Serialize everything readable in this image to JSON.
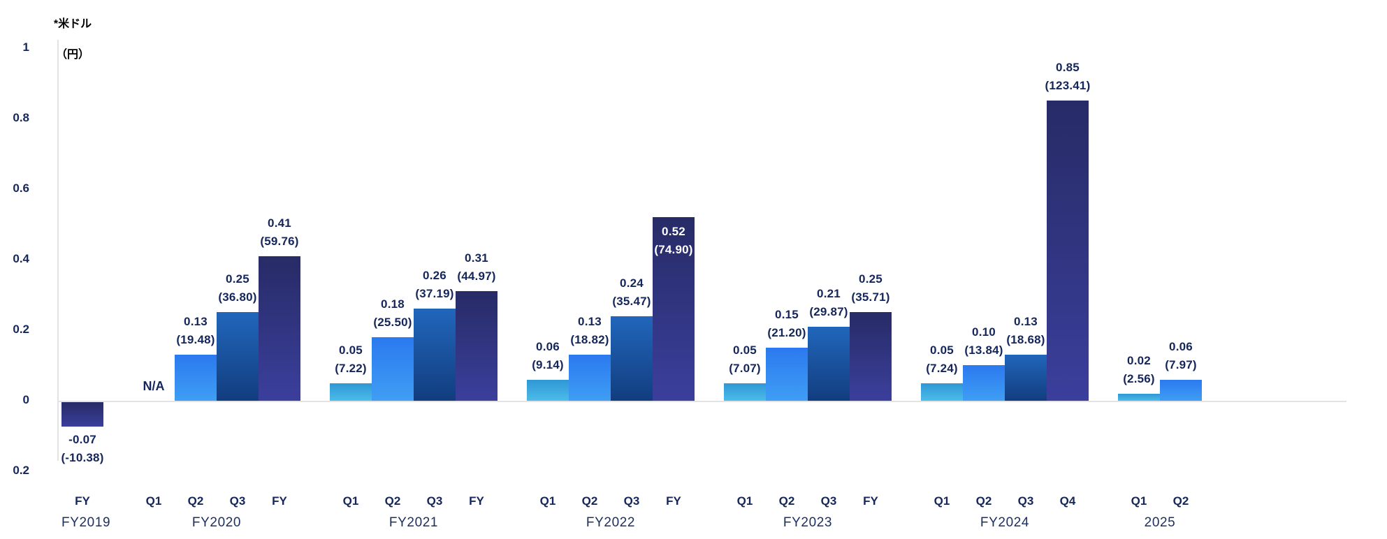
{
  "colors": {
    "text_navy": "#15265b",
    "year_text": "#1c3060",
    "grid_gray": "#e3e3e3",
    "bar_q1_top": "#2f97d5",
    "bar_q1_bottom": "#4cbce9",
    "bar_q2_top": "#2b79ef",
    "bar_q2_bottom": "#3f9ef4",
    "bar_q3_top": "#2166bb",
    "bar_q3_bottom": "#123d7f",
    "bar_fy_top": "#272b66",
    "bar_fy_bottom": "#3b3f9c",
    "inside_label": "#ffffff"
  },
  "y_axis": {
    "title_line1": "*米ドル",
    "title_line2": "（円）",
    "ticks": [
      "1",
      "0.8",
      "0.6",
      "0.4",
      "0.2",
      "0",
      "0.2"
    ],
    "tick_values": [
      1.0,
      0.8,
      0.6,
      0.4,
      0.2,
      0,
      -0.2
    ]
  },
  "chart_data": {
    "type": "bar",
    "title": "",
    "xlabel": "",
    "ylabel": "*米ドル（円）",
    "ylim": [
      -0.2,
      1.0
    ],
    "grid": false,
    "legend": "none",
    "groups": [
      {
        "year": "FY2019",
        "bars": [
          {
            "quarter": "FY",
            "value": -0.07,
            "usd_label": "-0.07",
            "yen_label": "(-10.38)",
            "style": "fy",
            "label_pos": "below"
          }
        ]
      },
      {
        "year": "FY2020",
        "bars": [
          {
            "quarter": "Q1",
            "value": null,
            "na_label": "N/A"
          },
          {
            "quarter": "Q2",
            "value": 0.13,
            "usd_label": "0.13",
            "yen_label": "(19.48)",
            "style": "q2",
            "label_pos": "above"
          },
          {
            "quarter": "Q3",
            "value": 0.25,
            "usd_label": "0.25",
            "yen_label": "(36.80)",
            "style": "q3",
            "label_pos": "above"
          },
          {
            "quarter": "FY",
            "value": 0.41,
            "usd_label": "0.41",
            "yen_label": "(59.76)",
            "style": "fy",
            "label_pos": "above"
          }
        ]
      },
      {
        "year": "FY2021",
        "bars": [
          {
            "quarter": "Q1",
            "value": 0.05,
            "usd_label": "0.05",
            "yen_label": "(7.22)",
            "style": "q1",
            "label_pos": "above"
          },
          {
            "quarter": "Q2",
            "value": 0.18,
            "usd_label": "0.18",
            "yen_label": "(25.50)",
            "style": "q2",
            "label_pos": "above"
          },
          {
            "quarter": "Q3",
            "value": 0.26,
            "usd_label": "0.26",
            "yen_label": "(37.19)",
            "style": "q3",
            "label_pos": "above"
          },
          {
            "quarter": "FY",
            "value": 0.31,
            "usd_label": "0.31",
            "yen_label": "(44.97)",
            "style": "fy",
            "label_pos": "above"
          }
        ]
      },
      {
        "year": "FY2022",
        "bars": [
          {
            "quarter": "Q1",
            "value": 0.06,
            "usd_label": "0.06",
            "yen_label": "(9.14)",
            "style": "q1",
            "label_pos": "above"
          },
          {
            "quarter": "Q2",
            "value": 0.13,
            "usd_label": "0.13",
            "yen_label": "(18.82)",
            "style": "q2",
            "label_pos": "above"
          },
          {
            "quarter": "Q3",
            "value": 0.24,
            "usd_label": "0.24",
            "yen_label": "(35.47)",
            "style": "q3",
            "label_pos": "above"
          },
          {
            "quarter": "FY",
            "value": 0.52,
            "usd_label": "0.52",
            "yen_label": "(74.90)",
            "style": "fy",
            "label_pos": "inside"
          }
        ]
      },
      {
        "year": "FY2023",
        "bars": [
          {
            "quarter": "Q1",
            "value": 0.05,
            "usd_label": "0.05",
            "yen_label": "(7.07)",
            "style": "q1",
            "label_pos": "above"
          },
          {
            "quarter": "Q2",
            "value": 0.15,
            "usd_label": "0.15",
            "yen_label": "(21.20)",
            "style": "q2",
            "label_pos": "above"
          },
          {
            "quarter": "Q3",
            "value": 0.21,
            "usd_label": "0.21",
            "yen_label": "(29.87)",
            "style": "q3",
            "label_pos": "above"
          },
          {
            "quarter": "FY",
            "value": 0.25,
            "usd_label": "0.25",
            "yen_label": "(35.71)",
            "style": "fy",
            "label_pos": "above"
          }
        ]
      },
      {
        "year": "FY2024",
        "bars": [
          {
            "quarter": "Q1",
            "value": 0.05,
            "usd_label": "0.05",
            "yen_label": "(7.24)",
            "style": "q1",
            "label_pos": "above"
          },
          {
            "quarter": "Q2",
            "value": 0.1,
            "usd_label": "0.10",
            "yen_label": "(13.84)",
            "style": "q2",
            "label_pos": "above"
          },
          {
            "quarter": "Q3",
            "value": 0.13,
            "usd_label": "0.13",
            "yen_label": "(18.68)",
            "style": "q3",
            "label_pos": "above"
          },
          {
            "quarter": "Q4",
            "value": 0.85,
            "usd_label": "0.85",
            "yen_label": "(123.41)",
            "style": "fy",
            "label_pos": "above"
          }
        ]
      },
      {
        "year": "2025",
        "bars": [
          {
            "quarter": "Q1",
            "value": 0.02,
            "usd_label": "0.02",
            "yen_label": "(2.56)",
            "style": "q1",
            "label_pos": "above"
          },
          {
            "quarter": "Q2",
            "value": 0.06,
            "usd_label": "0.06",
            "yen_label": "(7.97)",
            "style": "q2",
            "label_pos": "above"
          }
        ]
      }
    ]
  }
}
